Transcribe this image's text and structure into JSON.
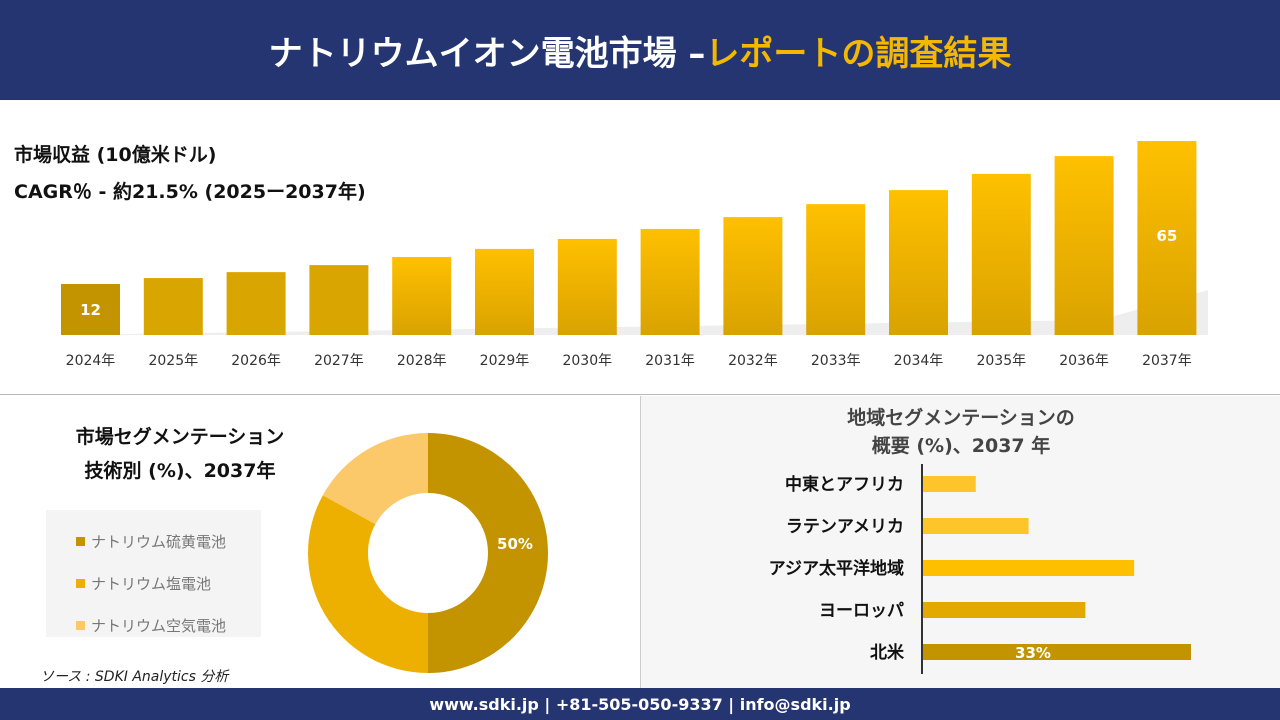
{
  "header": {
    "title_main": "ナトリウムイオン電池市場 –",
    "title_accent": "レポートの調査結果"
  },
  "colors": {
    "navy": "#253571",
    "gold": "#f5b800",
    "dark_gold": "#c49300",
    "light_gold": "#fcc96a"
  },
  "chart_data": [
    {
      "type": "bar",
      "title": "市場収益 (10億米ドル)",
      "subtitle": "CAGR％ - 約21.5% (2025ー2037年)",
      "categories": [
        "2024年",
        "2025年",
        "2026年",
        "2027年",
        "2028年",
        "2029年",
        "2030年",
        "2031年",
        "2032年",
        "2033年",
        "2034年",
        "2035年",
        "2036年",
        "2037年"
      ],
      "values": [
        12,
        14.2,
        16.4,
        19,
        22,
        25,
        28.7,
        32.4,
        36.8,
        41.6,
        46.8,
        52.8,
        59.4,
        65
      ],
      "data_labels": {
        "0": "12",
        "13": "65"
      }
    },
    {
      "type": "pie",
      "title": "市場セグメンテーション 技術別 (%)、2037年",
      "title_line1": "市場セグメンテーション",
      "title_line2": "技術別 (%)、2037年",
      "labels": [
        "ナトリウム硫黄電池",
        "ナトリウム塩電池",
        "ナトリウム空気電池"
      ],
      "values": [
        50,
        33,
        17
      ],
      "colors": [
        "#c49300",
        "#eeb000",
        "#fcc96a"
      ],
      "data_labels": {
        "0": "50%"
      },
      "legend": "left"
    },
    {
      "type": "bar",
      "orientation": "horizontal",
      "title_line1": "地域セグメンテーションの",
      "title_line2": "概要 (%)、2037 年",
      "categories": [
        "中東とアフリカ",
        "ラテンアメリカ",
        "アジア太平洋地域",
        "ヨーロッパ",
        "北米"
      ],
      "values": [
        6.5,
        13,
        26,
        20,
        33
      ],
      "colors": [
        "#fdc52a",
        "#fdc52a",
        "#fdbf00",
        "#e2aa00",
        "#c49300"
      ],
      "data_labels": {
        "4": "33%"
      }
    }
  ],
  "source": "ソース : SDKI Analytics 分析",
  "footer": "www.sdki.jp | +81-505-050-9337 | info@sdki.jp"
}
